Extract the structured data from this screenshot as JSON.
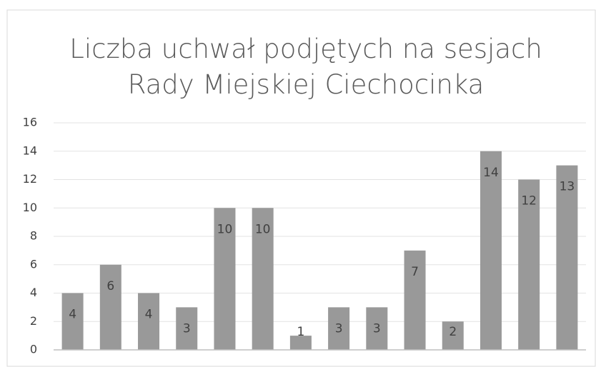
{
  "chart_data": {
    "type": "bar",
    "title": "Liczba uchwał podjętych na sesjach Rady Miejskiej Ciechocinka",
    "categories": [
      null,
      null,
      null,
      null,
      null,
      null,
      null,
      null,
      null,
      null,
      null,
      null,
      null,
      null
    ],
    "values": [
      4,
      6,
      4,
      3,
      10,
      10,
      1,
      3,
      3,
      7,
      2,
      14,
      12,
      13
    ],
    "color": "#999999",
    "ylim": [
      0,
      16
    ],
    "yticks": [
      0,
      2,
      4,
      6,
      8,
      10,
      12,
      14,
      16
    ],
    "grid": true
  }
}
